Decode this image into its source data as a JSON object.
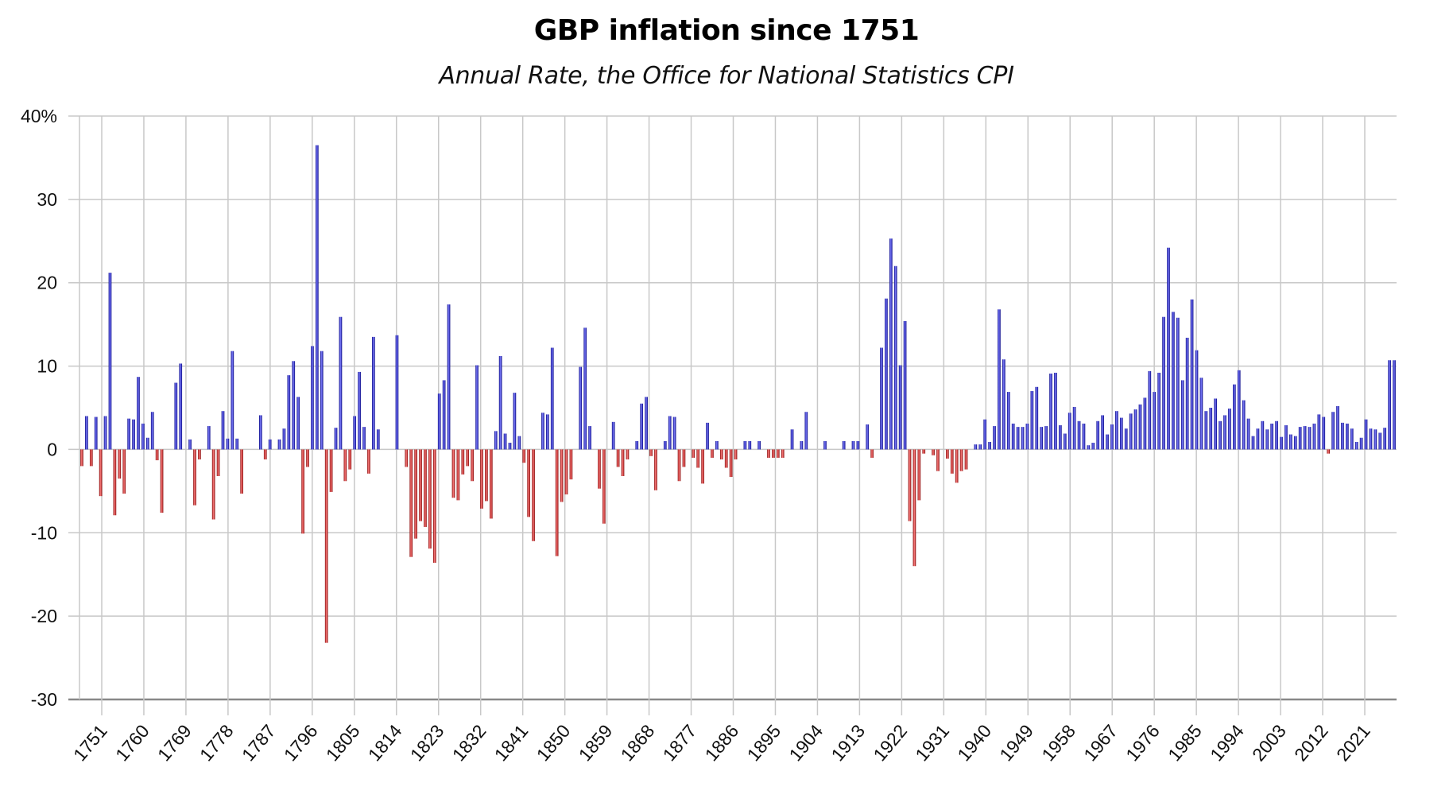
{
  "chart_data": {
    "type": "bar",
    "title": "GBP inflation since 1751",
    "subtitle": "Annual Rate, the Office for National Statistics CPI",
    "xlabel": "",
    "ylabel": "",
    "ylim": [
      -30,
      40
    ],
    "yticks": [
      40,
      30,
      20,
      10,
      0,
      -10,
      -20,
      -30
    ],
    "ytick_labels": [
      "40%",
      "30",
      "20",
      "10",
      "0",
      "-10",
      "-20",
      "-30"
    ],
    "xtick_labels": [
      "1751",
      "1760",
      "1769",
      "1778",
      "1787",
      "1796",
      "1805",
      "1814",
      "1823",
      "1832",
      "1841",
      "1850",
      "1859",
      "1868",
      "1877",
      "1886",
      "1895",
      "1904",
      "1913",
      "1922",
      "1931",
      "1940",
      "1949",
      "1958",
      "1967",
      "1976",
      "1985",
      "1994",
      "2003",
      "2012",
      "2021"
    ],
    "grid": true,
    "legend": "none",
    "colors": {
      "positive": "#000080",
      "positive_light": "#8080ff",
      "negative": "#800000",
      "negative_light": "#ff8080",
      "grid": "#c8c8c8"
    },
    "start_year": 1751,
    "values": [
      -2,
      4,
      -2,
      3.9,
      -5.6,
      4,
      21.2,
      -7.9,
      -3.5,
      -5.3,
      3.7,
      3.6,
      8.7,
      3.1,
      1.4,
      4.5,
      -1.3,
      -7.6,
      0,
      0,
      8,
      10.3,
      0,
      1.2,
      -6.7,
      -1.2,
      0,
      2.8,
      -8.4,
      -3.2,
      4.6,
      1.3,
      11.8,
      1.3,
      -5.3,
      0,
      0,
      0,
      4.1,
      -1.2,
      1.2,
      0,
      1.2,
      2.5,
      8.9,
      10.6,
      6.3,
      -10.1,
      -2.1,
      12.4,
      36.5,
      11.8,
      -23.2,
      -5.1,
      2.6,
      15.9,
      -3.8,
      -2.4,
      4,
      9.3,
      2.7,
      -2.9,
      13.5,
      2.4,
      0,
      0,
      0,
      13.7,
      0,
      -2.1,
      -12.9,
      -10.7,
      -8.6,
      -9.3,
      -11.9,
      -13.6,
      6.7,
      8.3,
      17.4,
      -5.8,
      -6.1,
      -3,
      -2,
      -3.8,
      10.1,
      -7.1,
      -6.2,
      -8.3,
      2.2,
      11.2,
      1.9,
      0.8,
      6.8,
      1.6,
      -1.6,
      -8.1,
      -11,
      0,
      4.4,
      4.2,
      12.2,
      -12.8,
      -6.3,
      -5.4,
      -3.6,
      0,
      9.9,
      14.6,
      2.8,
      0,
      -4.7,
      -8.9,
      0,
      3.3,
      -2.1,
      -3.2,
      -1.2,
      0,
      1,
      5.5,
      6.3,
      -0.8,
      -4.9,
      0,
      1,
      4,
      3.9,
      -3.8,
      -2.1,
      0,
      -1,
      -2.2,
      -4.1,
      3.2,
      -1,
      1,
      -1.2,
      -2.2,
      -3.3,
      -1.2,
      0,
      1,
      1,
      0,
      1,
      0,
      -1,
      -1,
      -1,
      -1,
      0,
      2.4,
      0,
      1,
      4.5,
      0,
      0,
      0,
      1,
      0,
      0,
      0,
      1,
      0,
      1,
      1,
      0,
      3,
      -1,
      0,
      12.2,
      18.1,
      25.3,
      22,
      10.1,
      15.4,
      -8.6,
      -14,
      -6.1,
      -0.5,
      0,
      -0.7,
      -2.6,
      0,
      -1.1,
      -2.9,
      -4,
      -2.6,
      -2.4,
      0,
      0.6,
      0.6,
      3.6,
      0.9,
      2.8,
      16.8,
      10.8,
      6.9,
      3.1,
      2.7,
      2.7,
      3.1,
      7,
      7.5,
      2.7,
      2.8,
      9.1,
      9.2,
      2.9,
      1.9,
      4.4,
      5.1,
      3.4,
      3.1,
      0.5,
      0.8,
      3.4,
      4.1,
      1.8,
      3,
      4.6,
      3.8,
      2.5,
      4.3,
      4.8,
      5.4,
      6.2,
      9.4,
      6.9,
      9.2,
      15.9,
      24.2,
      16.5,
      15.8,
      8.3,
      13.4,
      18,
      11.9,
      8.6,
      4.6,
      5,
      6.1,
      3.4,
      4.1,
      4.9,
      7.8,
      9.5,
      5.9,
      3.7,
      1.6,
      2.5,
      3.4,
      2.4,
      3.1,
      3.4,
      1.5,
      2.9,
      1.8,
      1.6,
      2.7,
      2.8,
      2.7,
      3.1,
      4.2,
      3.9,
      -0.5,
      4.5,
      5.2,
      3.2,
      3.1,
      2.5,
      0.9,
      1.4,
      3.6,
      2.5,
      2.4,
      2,
      2.6,
      10.7,
      10.7
    ]
  }
}
